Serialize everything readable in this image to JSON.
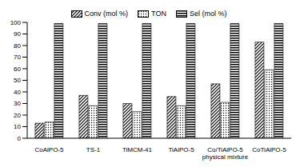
{
  "chart_data": {
    "type": "bar",
    "categories": [
      "CoAlPO-5",
      "TS-1",
      "TiMCM-41",
      "TiAlPO-5",
      "Co/TiAlPO-5 physical mixture",
      "CoTiAlPO-5"
    ],
    "series": [
      {
        "name": "Conv (mol %)",
        "color": "#000000",
        "values": [
          13,
          37,
          30,
          36,
          47,
          83
        ]
      },
      {
        "name": "TON",
        "color": "#000000",
        "values": [
          14,
          28,
          23,
          28,
          31,
          59
        ]
      },
      {
        "name": "Sel (mol %)",
        "color": "#000000",
        "values": [
          99,
          99,
          99,
          99,
          99,
          99
        ]
      }
    ],
    "ylim": [
      0,
      100
    ],
    "yticks": [
      0,
      10,
      20,
      30,
      40,
      50,
      60,
      70,
      80,
      90,
      100
    ],
    "grid": false,
    "legend": "top"
  }
}
